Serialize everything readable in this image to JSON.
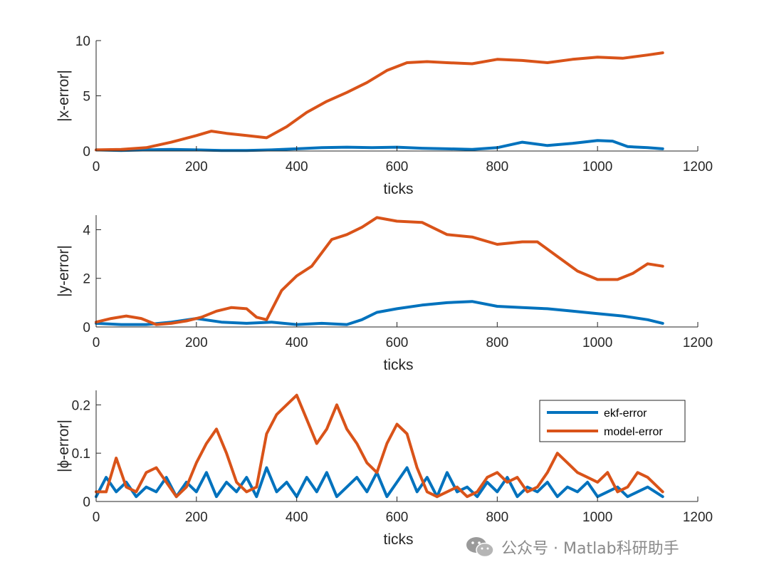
{
  "watermark": {
    "text": "公众号 · Matlab科研助手",
    "icon": "wechat-icon"
  },
  "colors": {
    "ekf": "#0072BD",
    "model": "#D95319",
    "axis": "#262626"
  },
  "chart_data": [
    {
      "type": "line",
      "xlabel": "ticks",
      "ylabel": "|x-error|",
      "xlim": [
        0,
        1200
      ],
      "ylim": [
        0,
        10
      ],
      "xticks": [
        "0",
        "200",
        "400",
        "600",
        "800",
        "1000",
        "1200"
      ],
      "yticks": [
        "0",
        "5",
        "10"
      ],
      "grid": false,
      "series": [
        {
          "name": "ekf-error",
          "x": [
            0,
            50,
            100,
            150,
            200,
            250,
            300,
            350,
            400,
            450,
            500,
            550,
            600,
            650,
            700,
            750,
            800,
            850,
            900,
            950,
            1000,
            1030,
            1060,
            1100,
            1130
          ],
          "y": [
            0.1,
            0.05,
            0.1,
            0.15,
            0.1,
            0.05,
            0.05,
            0.1,
            0.2,
            0.3,
            0.35,
            0.3,
            0.35,
            0.25,
            0.2,
            0.15,
            0.3,
            0.8,
            0.5,
            0.7,
            0.95,
            0.9,
            0.4,
            0.3,
            0.2
          ]
        },
        {
          "name": "model-error",
          "x": [
            0,
            50,
            100,
            150,
            200,
            230,
            260,
            300,
            340,
            380,
            420,
            460,
            500,
            540,
            580,
            620,
            660,
            700,
            750,
            800,
            850,
            900,
            950,
            1000,
            1050,
            1100,
            1130
          ],
          "y": [
            0.1,
            0.15,
            0.3,
            0.8,
            1.4,
            1.8,
            1.6,
            1.4,
            1.2,
            2.2,
            3.5,
            4.5,
            5.3,
            6.2,
            7.3,
            8.0,
            8.1,
            8.0,
            7.9,
            8.3,
            8.2,
            8.0,
            8.3,
            8.5,
            8.4,
            8.7,
            8.9
          ]
        }
      ]
    },
    {
      "type": "line",
      "xlabel": "ticks",
      "ylabel": "|y-error|",
      "xlim": [
        0,
        1200
      ],
      "ylim": [
        0,
        4.6
      ],
      "xticks": [
        "0",
        "200",
        "400",
        "600",
        "800",
        "1000",
        "1200"
      ],
      "yticks": [
        "0",
        "2",
        "4"
      ],
      "grid": false,
      "series": [
        {
          "name": "ekf-error",
          "x": [
            0,
            50,
            100,
            150,
            200,
            250,
            300,
            350,
            400,
            450,
            500,
            530,
            560,
            600,
            650,
            700,
            750,
            800,
            850,
            900,
            950,
            1000,
            1050,
            1100,
            1130
          ],
          "y": [
            0.15,
            0.1,
            0.1,
            0.2,
            0.35,
            0.2,
            0.15,
            0.2,
            0.1,
            0.15,
            0.1,
            0.3,
            0.6,
            0.75,
            0.9,
            1.0,
            1.05,
            0.85,
            0.8,
            0.75,
            0.65,
            0.55,
            0.45,
            0.3,
            0.15
          ]
        },
        {
          "name": "model-error",
          "x": [
            0,
            30,
            60,
            90,
            120,
            150,
            180,
            210,
            240,
            270,
            300,
            320,
            340,
            370,
            400,
            430,
            470,
            500,
            530,
            560,
            600,
            650,
            700,
            750,
            800,
            850,
            880,
            920,
            960,
            1000,
            1040,
            1070,
            1100,
            1130
          ],
          "y": [
            0.2,
            0.35,
            0.45,
            0.35,
            0.1,
            0.15,
            0.25,
            0.4,
            0.65,
            0.8,
            0.75,
            0.4,
            0.3,
            1.5,
            2.1,
            2.5,
            3.6,
            3.8,
            4.1,
            4.5,
            4.35,
            4.3,
            3.8,
            3.7,
            3.4,
            3.5,
            3.5,
            2.9,
            2.3,
            1.95,
            1.95,
            2.2,
            2.6,
            2.5
          ]
        }
      ]
    },
    {
      "type": "line",
      "xlabel": "ticks",
      "ylabel": "|ϕ-error|",
      "xlim": [
        0,
        1200
      ],
      "ylim": [
        0,
        0.23
      ],
      "xticks": [
        "0",
        "200",
        "400",
        "600",
        "800",
        "1000",
        "1200"
      ],
      "yticks": [
        "0",
        "0.1",
        "0.2"
      ],
      "grid": false,
      "legend": {
        "location": "top-right",
        "entries": [
          "ekf-error",
          "model-error"
        ]
      },
      "series": [
        {
          "name": "ekf-error",
          "x": [
            0,
            20,
            40,
            60,
            80,
            100,
            120,
            140,
            160,
            180,
            200,
            220,
            240,
            260,
            280,
            300,
            320,
            340,
            360,
            380,
            400,
            420,
            440,
            460,
            480,
            500,
            520,
            540,
            560,
            580,
            600,
            620,
            640,
            660,
            680,
            700,
            720,
            740,
            760,
            780,
            800,
            820,
            840,
            860,
            880,
            900,
            920,
            940,
            960,
            980,
            1000,
            1020,
            1040,
            1060,
            1080,
            1100,
            1130
          ],
          "y": [
            0.01,
            0.05,
            0.02,
            0.04,
            0.01,
            0.03,
            0.02,
            0.05,
            0.01,
            0.04,
            0.02,
            0.06,
            0.01,
            0.04,
            0.02,
            0.05,
            0.01,
            0.07,
            0.02,
            0.04,
            0.01,
            0.05,
            0.02,
            0.06,
            0.01,
            0.03,
            0.05,
            0.02,
            0.06,
            0.01,
            0.04,
            0.07,
            0.02,
            0.05,
            0.01,
            0.06,
            0.02,
            0.03,
            0.01,
            0.04,
            0.02,
            0.05,
            0.01,
            0.03,
            0.02,
            0.04,
            0.01,
            0.03,
            0.02,
            0.04,
            0.01,
            0.02,
            0.03,
            0.01,
            0.02,
            0.03,
            0.01
          ]
        },
        {
          "name": "model-error",
          "x": [
            0,
            20,
            40,
            60,
            80,
            100,
            120,
            140,
            160,
            180,
            200,
            220,
            240,
            260,
            280,
            300,
            320,
            340,
            360,
            380,
            400,
            420,
            440,
            460,
            480,
            500,
            520,
            540,
            560,
            580,
            600,
            620,
            640,
            660,
            680,
            700,
            720,
            740,
            760,
            780,
            800,
            820,
            840,
            860,
            880,
            900,
            920,
            940,
            960,
            980,
            1000,
            1020,
            1040,
            1060,
            1080,
            1100,
            1130
          ],
          "y": [
            0.02,
            0.02,
            0.09,
            0.03,
            0.02,
            0.06,
            0.07,
            0.04,
            0.01,
            0.03,
            0.08,
            0.12,
            0.15,
            0.1,
            0.04,
            0.02,
            0.03,
            0.14,
            0.18,
            0.2,
            0.22,
            0.17,
            0.12,
            0.15,
            0.2,
            0.15,
            0.12,
            0.08,
            0.06,
            0.12,
            0.16,
            0.14,
            0.07,
            0.02,
            0.01,
            0.02,
            0.03,
            0.01,
            0.02,
            0.05,
            0.06,
            0.04,
            0.05,
            0.02,
            0.03,
            0.06,
            0.1,
            0.08,
            0.06,
            0.05,
            0.04,
            0.06,
            0.02,
            0.03,
            0.06,
            0.05,
            0.02
          ]
        }
      ]
    }
  ]
}
